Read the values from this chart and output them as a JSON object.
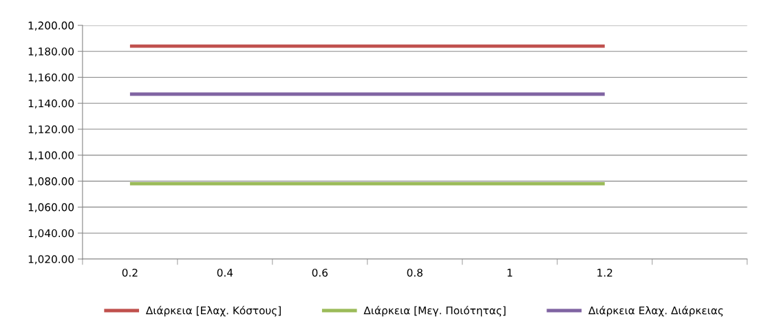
{
  "chart_data": {
    "type": "line",
    "categories": [
      "0.2",
      "0.4",
      "0.6",
      "0.8",
      "1",
      "1.2",
      null
    ],
    "series": [
      {
        "name": "Διάρκεια [Ελαχ. Κόστους]",
        "color": "#c0504d",
        "values": [
          1184,
          1184,
          1184,
          1184,
          1184,
          1184,
          null
        ]
      },
      {
        "name": "Διάρκεια [Μεγ. Ποιότητας]",
        "color": "#9bbb59",
        "values": [
          1078,
          1078,
          1078,
          1078,
          1078,
          1078,
          null
        ]
      },
      {
        "name": "Διάρκεια Ελαχ. Διάρκειας",
        "color": "#8064a2",
        "values": [
          1147,
          1147,
          1147,
          1147,
          1147,
          1147,
          null
        ]
      }
    ],
    "ylim": [
      1020,
      1200
    ],
    "yticks": [
      {
        "value": 1020,
        "label": "1,020.00"
      },
      {
        "value": 1040,
        "label": "1,040.00"
      },
      {
        "value": 1060,
        "label": "1,060.00"
      },
      {
        "value": 1080,
        "label": "1,080.00"
      },
      {
        "value": 1100,
        "label": "1,100.00"
      },
      {
        "value": 1120,
        "label": "1,120.00"
      },
      {
        "value": 1140,
        "label": "1,140.00"
      },
      {
        "value": 1160,
        "label": "1,160.00"
      },
      {
        "value": 1180,
        "label": "1,180.00"
      },
      {
        "value": 1200,
        "label": "1,200.00"
      }
    ],
    "grid": "y",
    "legend": "bottom",
    "marker": "none",
    "line_style": "solid"
  }
}
